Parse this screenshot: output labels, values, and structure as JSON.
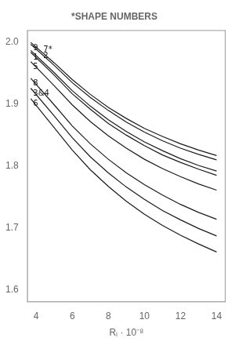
{
  "chart_data": {
    "type": "line",
    "title": "*SHAPE NUMBERS",
    "xlabel": "Rₗ · 10⁻⁸",
    "x": [
      3.7,
      5,
      6,
      7,
      8,
      9,
      10,
      11,
      12,
      13,
      14
    ],
    "series": [
      {
        "name": "9",
        "values": [
          2.0,
          1.967,
          1.94,
          1.916,
          1.895,
          1.877,
          1.861,
          1.848,
          1.836,
          1.826,
          1.817
        ]
      },
      {
        "name": "7*",
        "values": [
          1.997,
          1.963,
          1.935,
          1.911,
          1.89,
          1.871,
          1.855,
          1.841,
          1.829,
          1.819,
          1.81
        ]
      },
      {
        "name": "2",
        "values": [
          1.987,
          1.951,
          1.922,
          1.897,
          1.875,
          1.856,
          1.839,
          1.825,
          1.812,
          1.801,
          1.792
        ]
      },
      {
        "name": "1",
        "values": [
          1.984,
          1.947,
          1.917,
          1.892,
          1.869,
          1.85,
          1.833,
          1.818,
          1.806,
          1.795,
          1.785
        ]
      },
      {
        "name": "5",
        "values": [
          1.969,
          1.93,
          1.899,
          1.872,
          1.849,
          1.829,
          1.811,
          1.796,
          1.783,
          1.771,
          1.761
        ]
      },
      {
        "name": "8",
        "values": [
          1.942,
          1.899,
          1.865,
          1.836,
          1.811,
          1.789,
          1.77,
          1.753,
          1.738,
          1.725,
          1.714
        ]
      },
      {
        "name": "3&4",
        "values": [
          1.926,
          1.881,
          1.846,
          1.815,
          1.789,
          1.766,
          1.746,
          1.728,
          1.713,
          1.699,
          1.687
        ]
      },
      {
        "name": "6",
        "values": [
          1.909,
          1.862,
          1.826,
          1.794,
          1.767,
          1.743,
          1.722,
          1.704,
          1.688,
          1.674,
          1.661
        ]
      }
    ],
    "color": "#1a1a1a",
    "xlim": [
      3.5,
      14.5
    ],
    "xticks": [
      4,
      6,
      8,
      10,
      12,
      14
    ],
    "ylim": [
      1.58,
      2.02
    ],
    "yticks": [
      1.6,
      1.7,
      1.8,
      1.9,
      {
        "value": 2.0,
        "label": "2.0"
      }
    ],
    "grid": false
  }
}
